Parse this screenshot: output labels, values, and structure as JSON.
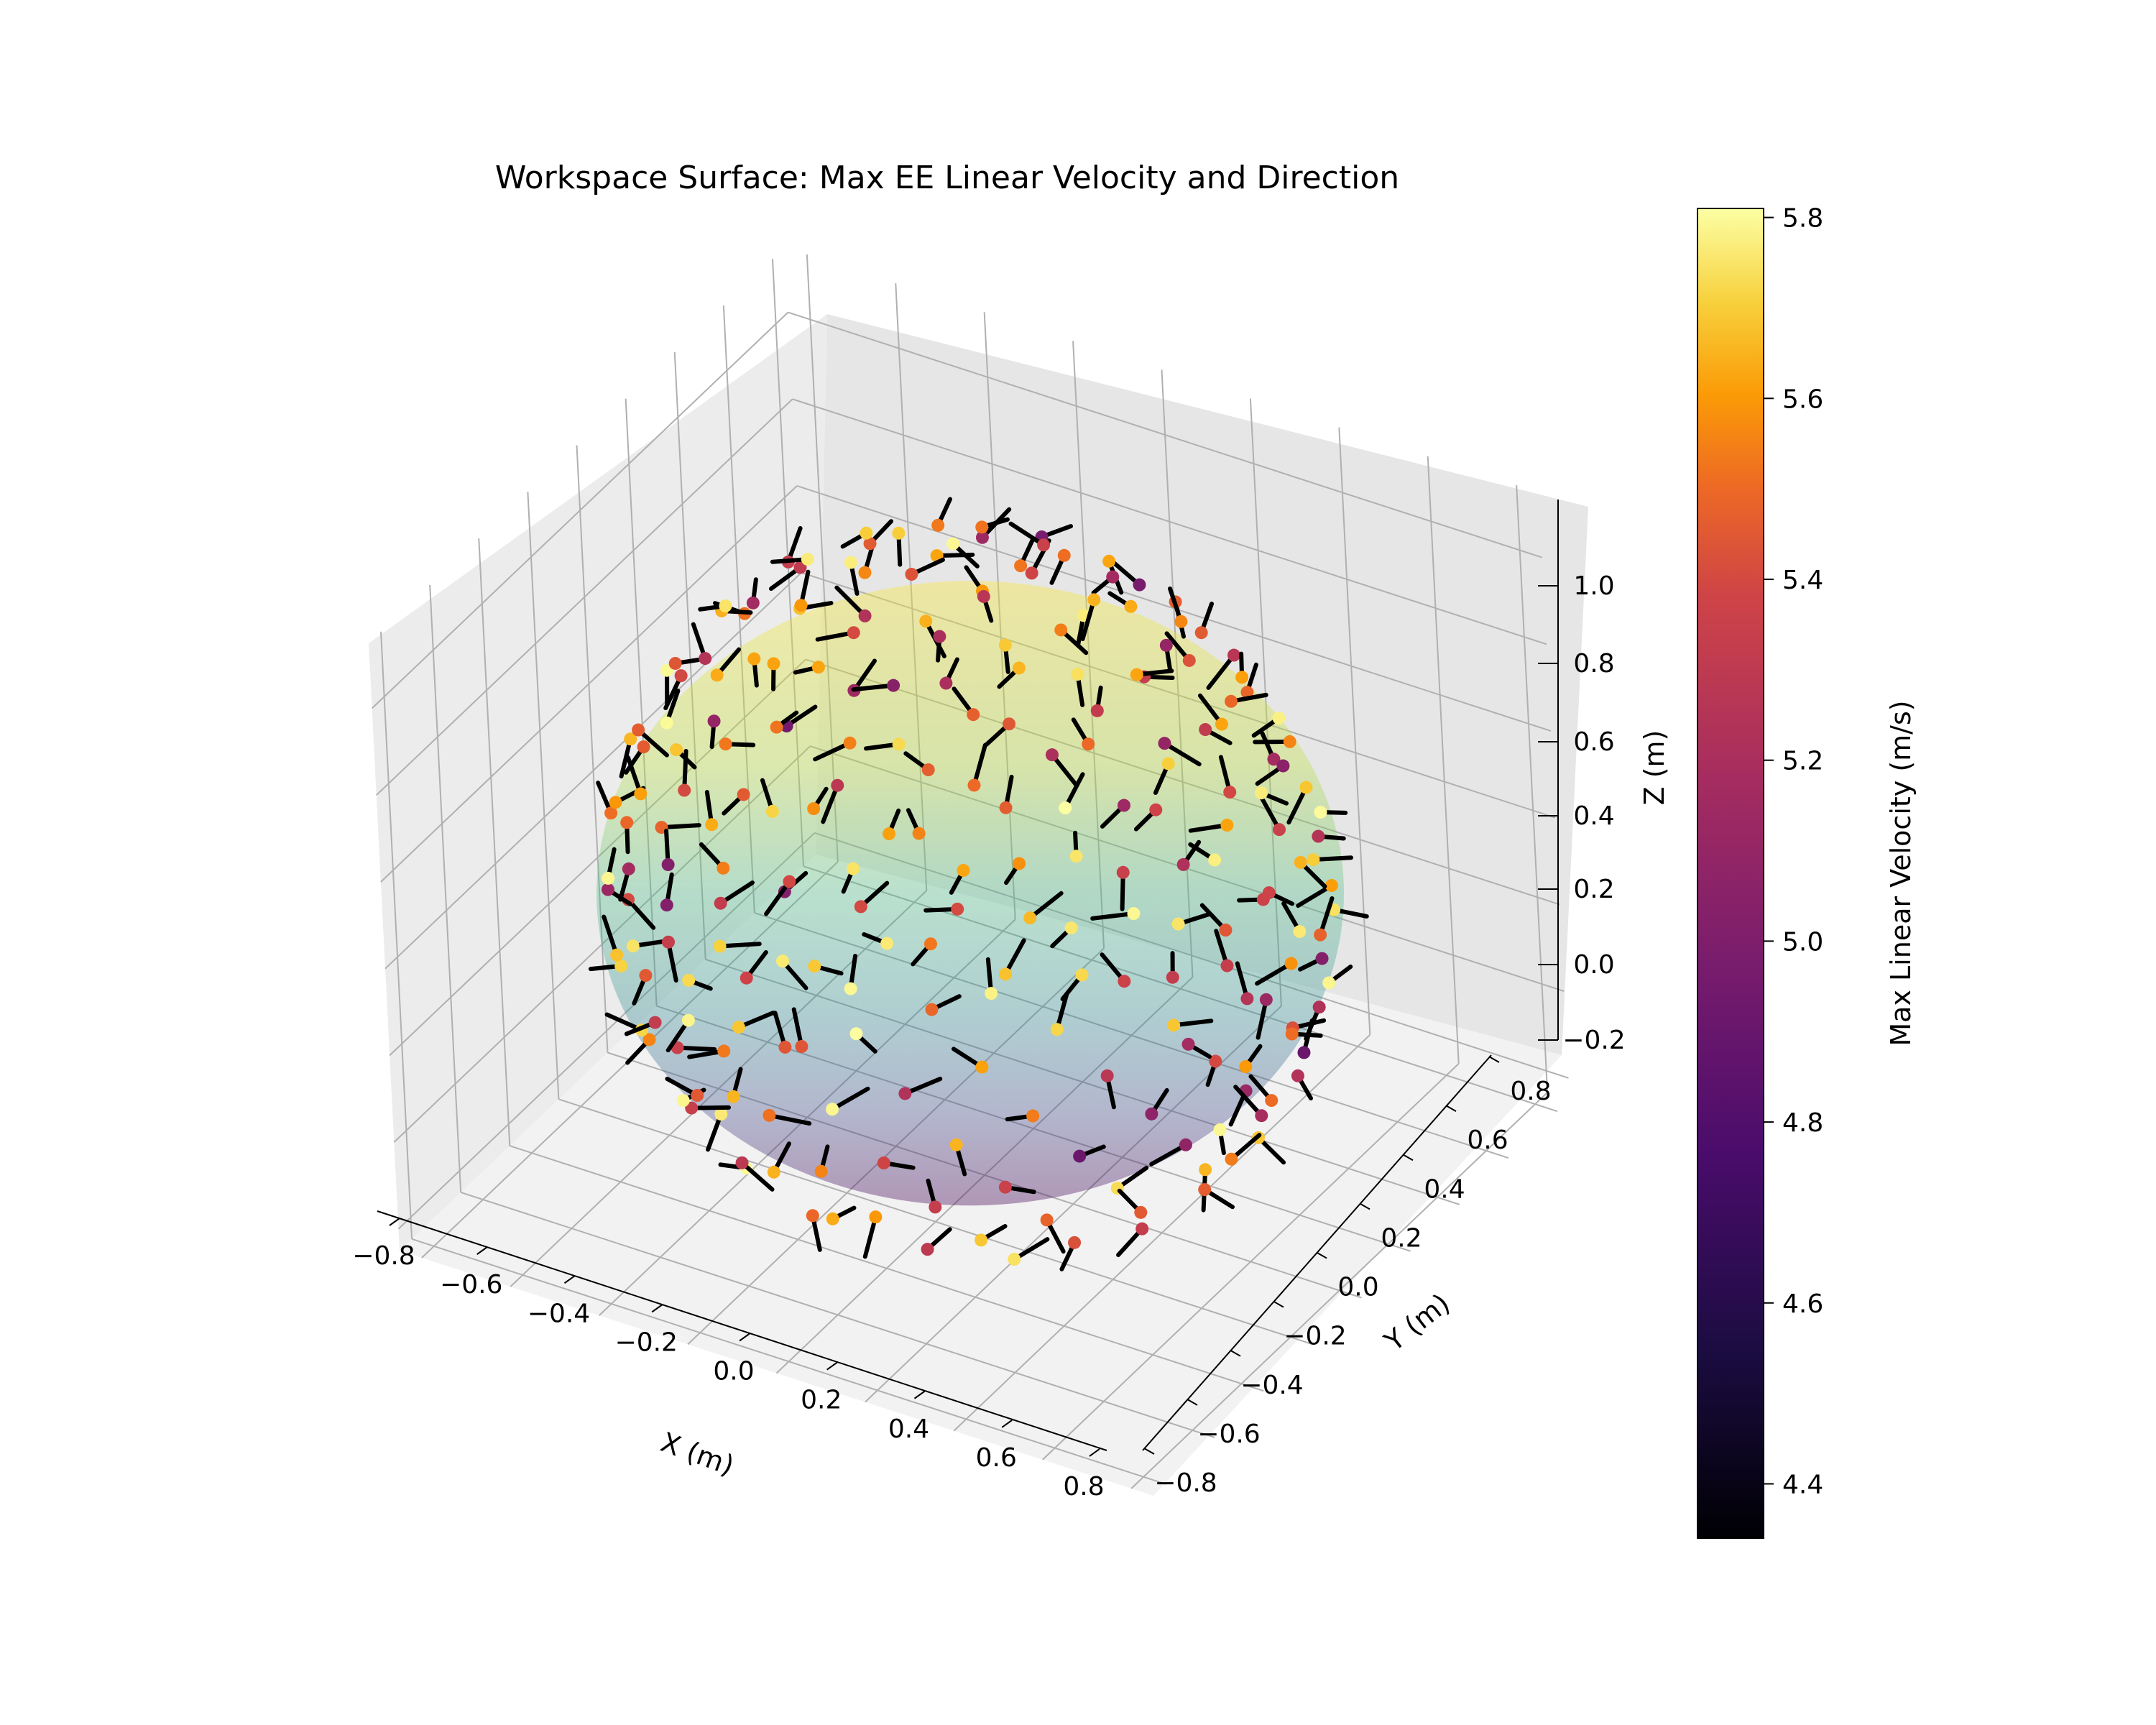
{
  "chart_data": {
    "type": "scatter",
    "title": "Workspace Surface: Max EE Linear Velocity and Direction",
    "xlabel": "X (m)",
    "ylabel": "Y (m)",
    "zlabel": "Z (m)",
    "xlim": [
      -0.85,
      0.85
    ],
    "ylim": [
      -0.85,
      0.85
    ],
    "zlim": [
      -0.25,
      1.15
    ],
    "x_ticks": [
      "−0.8",
      "−0.6",
      "−0.4",
      "−0.2",
      "0.0",
      "0.2",
      "0.4",
      "0.6",
      "0.8"
    ],
    "y_ticks": [
      "−0.8",
      "−0.6",
      "−0.4",
      "−0.2",
      "0.0",
      "0.2",
      "0.4",
      "0.6",
      "0.8"
    ],
    "z_ticks": [
      "−0.2",
      "0.0",
      "0.2",
      "0.4",
      "0.6",
      "0.8",
      "1.0"
    ],
    "grid": true,
    "surface": {
      "center": [
        0.0,
        0.0,
        0.4
      ],
      "radius": 0.72,
      "colormap": "viridis",
      "alpha": 0.35
    },
    "colorbar": {
      "label": "Max Linear Velocity (m/s)",
      "colormap": "inferno",
      "vmin": 4.34,
      "vmax": 5.81,
      "ticks": [
        "4.4",
        "4.6",
        "4.8",
        "5.0",
        "5.2",
        "5.4",
        "5.6",
        "5.8"
      ]
    },
    "point_count": 260,
    "velocity_range": [
      4.34,
      5.81
    ],
    "arrow_color": "#000000"
  }
}
